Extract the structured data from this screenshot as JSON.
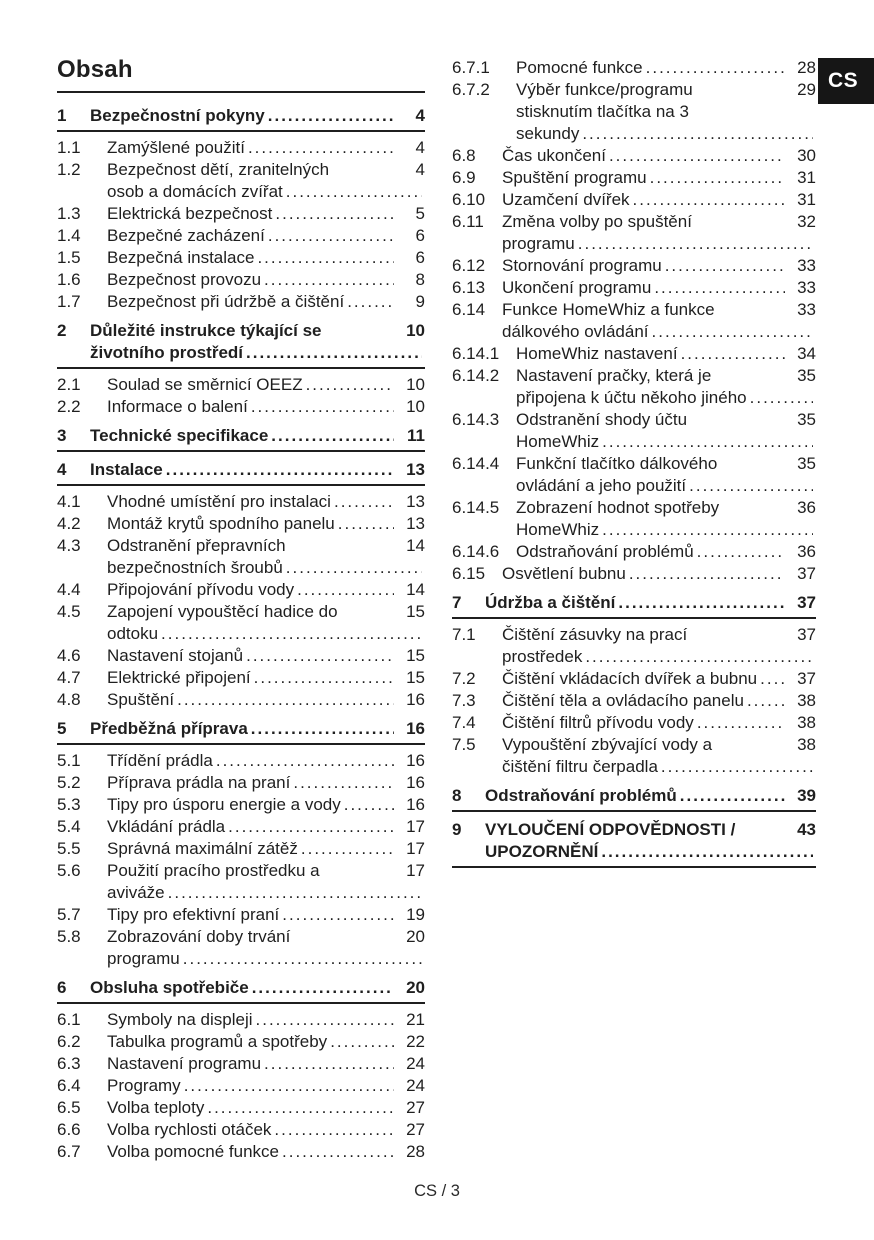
{
  "page": {
    "title": "Obsah",
    "language_badge": "CS",
    "footer": "CS / 3"
  },
  "colors": {
    "text": "#1f1f1f",
    "badge_bg": "#161616",
    "badge_text": "#ffffff"
  },
  "toc": {
    "columns": [
      {
        "name": "left",
        "entries": [
          {
            "num": "1",
            "level": 1,
            "lines": [
              "Bezpečnostní pokyny"
            ],
            "page": "4"
          },
          {
            "num": "1.1",
            "level": 2,
            "lines": [
              "Zamýšlené použití"
            ],
            "page": "4"
          },
          {
            "num": "1.2",
            "level": 2,
            "lines": [
              "Bezpečnost dětí, zranitelných",
              "osob a domácích zvířat"
            ],
            "page": "4"
          },
          {
            "num": "1.3",
            "level": 2,
            "lines": [
              "Elektrická bezpečnost"
            ],
            "page": "5"
          },
          {
            "num": "1.4",
            "level": 2,
            "lines": [
              "Bezpečné zacházení"
            ],
            "page": "6"
          },
          {
            "num": "1.5",
            "level": 2,
            "lines": [
              "Bezpečná instalace"
            ],
            "page": "6"
          },
          {
            "num": "1.6",
            "level": 2,
            "lines": [
              "Bezpečnost provozu"
            ],
            "page": "8"
          },
          {
            "num": "1.7",
            "level": 2,
            "lines": [
              "Bezpečnost při údržbě a čištění"
            ],
            "page": "9"
          },
          {
            "num": "2",
            "level": 1,
            "lines": [
              "Důležité instrukce týkající se",
              "životního prostředí"
            ],
            "page": "10"
          },
          {
            "num": "2.1",
            "level": 2,
            "lines": [
              "Soulad se směrnicí OEEZ"
            ],
            "page": "10"
          },
          {
            "num": "2.2",
            "level": 2,
            "lines": [
              "Informace o balení"
            ],
            "page": "10"
          },
          {
            "num": "3",
            "level": 1,
            "lines": [
              "Technické specifikace"
            ],
            "page": "11"
          },
          {
            "num": "4",
            "level": 1,
            "lines": [
              "Instalace"
            ],
            "page": "13"
          },
          {
            "num": "4.1",
            "level": 2,
            "lines": [
              "Vhodné umístění pro instalaci"
            ],
            "page": "13"
          },
          {
            "num": "4.2",
            "level": 2,
            "lines": [
              "Montáž krytů spodního panelu"
            ],
            "page": "13"
          },
          {
            "num": "4.3",
            "level": 2,
            "lines": [
              "Odstranění přepravních",
              "bezpečnostních šroubů"
            ],
            "page": "14"
          },
          {
            "num": "4.4",
            "level": 2,
            "lines": [
              "Připojování přívodu vody"
            ],
            "page": "14"
          },
          {
            "num": "4.5",
            "level": 2,
            "lines": [
              "Zapojení vypouštěcí hadice do",
              "odtoku"
            ],
            "page": "15"
          },
          {
            "num": "4.6",
            "level": 2,
            "lines": [
              "Nastavení stojanů"
            ],
            "page": "15"
          },
          {
            "num": "4.7",
            "level": 2,
            "lines": [
              "Elektrické připojení"
            ],
            "page": "15"
          },
          {
            "num": "4.8",
            "level": 2,
            "lines": [
              "Spuštění"
            ],
            "page": "16"
          },
          {
            "num": "5",
            "level": 1,
            "lines": [
              "Předběžná příprava"
            ],
            "page": "16"
          },
          {
            "num": "5.1",
            "level": 2,
            "lines": [
              "Třídění prádla"
            ],
            "page": "16"
          },
          {
            "num": "5.2",
            "level": 2,
            "lines": [
              "Příprava prádla na praní"
            ],
            "page": "16"
          },
          {
            "num": "5.3",
            "level": 2,
            "lines": [
              "Tipy pro úsporu energie a vody"
            ],
            "page": "16"
          },
          {
            "num": "5.4",
            "level": 2,
            "lines": [
              "Vkládání prádla"
            ],
            "page": "17"
          },
          {
            "num": "5.5",
            "level": 2,
            "lines": [
              "Správná maximální zátěž"
            ],
            "page": "17"
          },
          {
            "num": "5.6",
            "level": 2,
            "lines": [
              "Použití pracího prostředku a",
              "aviváže"
            ],
            "page": "17"
          },
          {
            "num": "5.7",
            "level": 2,
            "lines": [
              "Tipy pro efektivní praní"
            ],
            "page": "19"
          },
          {
            "num": "5.8",
            "level": 2,
            "lines": [
              "Zobrazování doby trvání",
              "programu"
            ],
            "page": "20"
          },
          {
            "num": "6",
            "level": 1,
            "lines": [
              "Obsluha spotřebiče"
            ],
            "page": "20"
          },
          {
            "num": "6.1",
            "level": 2,
            "lines": [
              "Symboly na displeji"
            ],
            "page": "21"
          },
          {
            "num": "6.2",
            "level": 2,
            "lines": [
              "Tabulka programů a spotřeby"
            ],
            "page": "22"
          },
          {
            "num": "6.3",
            "level": 2,
            "lines": [
              "Nastavení programu"
            ],
            "page": "24"
          },
          {
            "num": "6.4",
            "level": 2,
            "lines": [
              "Programy"
            ],
            "page": "24"
          },
          {
            "num": "6.5",
            "level": 2,
            "lines": [
              "Volba teploty"
            ],
            "page": "27"
          },
          {
            "num": "6.6",
            "level": 2,
            "lines": [
              "Volba rychlosti otáček"
            ],
            "page": "27"
          },
          {
            "num": "6.7",
            "level": 2,
            "lines": [
              "Volba pomocné funkce"
            ],
            "page": "28"
          }
        ]
      },
      {
        "name": "right",
        "entries": [
          {
            "num": "6.7.1",
            "level": 3,
            "lines": [
              "Pomocné funkce"
            ],
            "page": "28"
          },
          {
            "num": "6.7.2",
            "level": 3,
            "lines": [
              "Výběr funkce/programu",
              "stisknutím tlačítka na 3",
              "sekundy"
            ],
            "page": "29"
          },
          {
            "num": "6.8",
            "level": 2,
            "lines": [
              "Čas ukončení"
            ],
            "page": "30"
          },
          {
            "num": "6.9",
            "level": 2,
            "lines": [
              "Spuštění programu"
            ],
            "page": "31"
          },
          {
            "num": "6.10",
            "level": 2,
            "lines": [
              "Uzamčení dvířek"
            ],
            "page": "31"
          },
          {
            "num": "6.11",
            "level": 2,
            "lines": [
              "Změna volby po spuštění",
              "programu"
            ],
            "page": "32"
          },
          {
            "num": "6.12",
            "level": 2,
            "lines": [
              "Stornování programu"
            ],
            "page": "33"
          },
          {
            "num": "6.13",
            "level": 2,
            "lines": [
              "Ukončení programu"
            ],
            "page": "33"
          },
          {
            "num": "6.14",
            "level": 2,
            "lines": [
              "Funkce HomeWhiz a funkce",
              "dálkového ovládání"
            ],
            "page": "33"
          },
          {
            "num": "6.14.1",
            "level": 3,
            "lines": [
              "HomeWhiz nastavení"
            ],
            "page": "34"
          },
          {
            "num": "6.14.2",
            "level": 3,
            "lines": [
              "Nastavení pračky, která je",
              "připojena k účtu někoho jiného"
            ],
            "page": "35"
          },
          {
            "num": "6.14.3",
            "level": 3,
            "lines": [
              "Odstranění shody účtu",
              "HomeWhiz"
            ],
            "page": "35"
          },
          {
            "num": "6.14.4",
            "level": 3,
            "lines": [
              "Funkční tlačítko dálkového",
              "ovládání a jeho použití"
            ],
            "page": "35"
          },
          {
            "num": "6.14.5",
            "level": 3,
            "lines": [
              "Zobrazení hodnot spotřeby",
              "HomeWhiz"
            ],
            "page": "36"
          },
          {
            "num": "6.14.6",
            "level": 3,
            "lines": [
              "Odstraňování problémů"
            ],
            "page": "36"
          },
          {
            "num": "6.15",
            "level": 2,
            "lines": [
              "Osvětlení bubnu"
            ],
            "page": "37"
          },
          {
            "num": "7",
            "level": 1,
            "lines": [
              "Údržba a čištění"
            ],
            "page": "37"
          },
          {
            "num": "7.1",
            "level": 2,
            "lines": [
              "Čištění zásuvky na prací",
              "prostředek"
            ],
            "page": "37"
          },
          {
            "num": "7.2",
            "level": 2,
            "lines": [
              "Čištění vkládacích dvířek a bubnu"
            ],
            "page": "37"
          },
          {
            "num": "7.3",
            "level": 2,
            "lines": [
              "Čištění těla a ovládacího panelu"
            ],
            "page": "38"
          },
          {
            "num": "7.4",
            "level": 2,
            "lines": [
              "Čištění filtrů přívodu vody"
            ],
            "page": "38"
          },
          {
            "num": "7.5",
            "level": 2,
            "lines": [
              "Vypouštění zbývající vody a",
              "čištění filtru čerpadla"
            ],
            "page": "38"
          },
          {
            "num": "8",
            "level": 1,
            "lines": [
              "Odstraňování problémů"
            ],
            "page": "39"
          },
          {
            "num": "9",
            "level": 1,
            "lines": [
              "VYLOUČENÍ ODPOVĚDNOSTI /",
              "UPOZORNĚNÍ"
            ],
            "page": "43"
          }
        ]
      }
    ]
  }
}
